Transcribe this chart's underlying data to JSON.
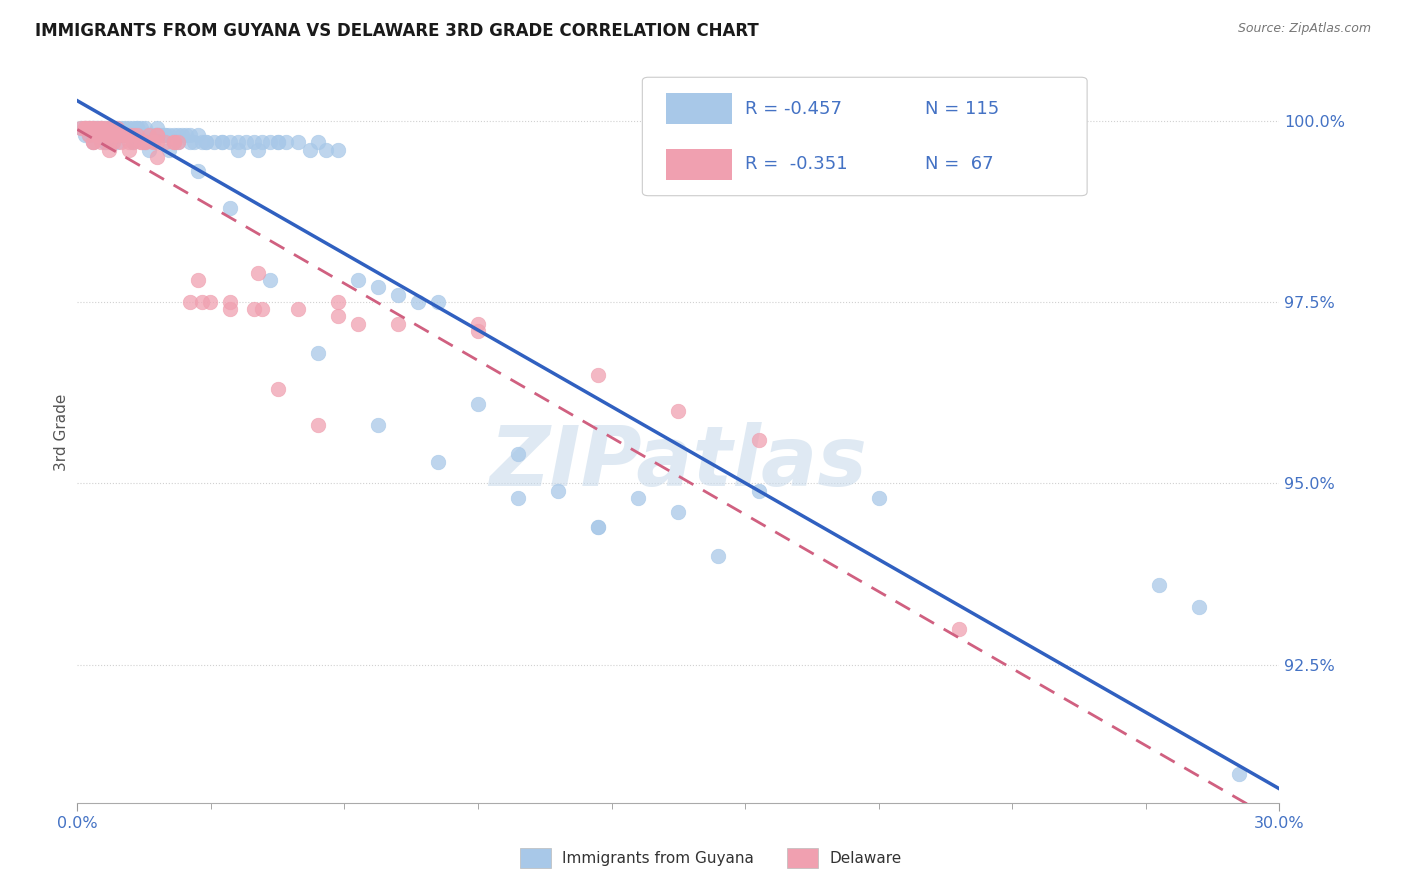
{
  "title": "IMMIGRANTS FROM GUYANA VS DELAWARE 3RD GRADE CORRELATION CHART",
  "source": "Source: ZipAtlas.com",
  "ylabel": "3rd Grade",
  "ytick_labels": [
    "100.0%",
    "97.5%",
    "95.0%",
    "92.5%"
  ],
  "ytick_values": [
    1.0,
    0.975,
    0.95,
    0.925
  ],
  "xmin": 0.0,
  "xmax": 0.3,
  "ymin": 0.906,
  "ymax": 1.008,
  "blue_color": "#a8c8e8",
  "pink_color": "#f0a0b0",
  "blue_line_color": "#3060c0",
  "pink_line_color": "#d06080",
  "axis_color": "#4472c4",
  "grid_color": "#cccccc",
  "watermark": "ZIPatlas",
  "blue_scatter_x": [
    0.001,
    0.002,
    0.002,
    0.003,
    0.003,
    0.003,
    0.004,
    0.004,
    0.004,
    0.005,
    0.005,
    0.006,
    0.006,
    0.006,
    0.007,
    0.007,
    0.008,
    0.008,
    0.009,
    0.009,
    0.01,
    0.01,
    0.011,
    0.012,
    0.012,
    0.013,
    0.013,
    0.014,
    0.014,
    0.015,
    0.015,
    0.016,
    0.016,
    0.017,
    0.017,
    0.018,
    0.019,
    0.02,
    0.02,
    0.021,
    0.022,
    0.023,
    0.024,
    0.025,
    0.026,
    0.027,
    0.028,
    0.029,
    0.03,
    0.031,
    0.032,
    0.034,
    0.036,
    0.038,
    0.04,
    0.042,
    0.044,
    0.046,
    0.048,
    0.05,
    0.052,
    0.055,
    0.058,
    0.062,
    0.065,
    0.07,
    0.075,
    0.08,
    0.085,
    0.09,
    0.1,
    0.11,
    0.12,
    0.13,
    0.14,
    0.15,
    0.17,
    0.2,
    0.003,
    0.005,
    0.007,
    0.009,
    0.011,
    0.013,
    0.015,
    0.018,
    0.02,
    0.022,
    0.025,
    0.028,
    0.032,
    0.036,
    0.04,
    0.045,
    0.05,
    0.06,
    0.004,
    0.007,
    0.01,
    0.014,
    0.018,
    0.023,
    0.03,
    0.038,
    0.048,
    0.06,
    0.075,
    0.09,
    0.11,
    0.13,
    0.16,
    0.27,
    0.28,
    0.29
  ],
  "blue_scatter_y": [
    0.999,
    0.999,
    0.998,
    0.999,
    0.999,
    0.998,
    0.999,
    0.999,
    0.998,
    0.999,
    0.998,
    0.999,
    0.999,
    0.998,
    0.999,
    0.998,
    0.999,
    0.998,
    0.999,
    0.998,
    0.999,
    0.998,
    0.999,
    0.999,
    0.998,
    0.999,
    0.998,
    0.999,
    0.998,
    0.999,
    0.998,
    0.999,
    0.998,
    0.999,
    0.998,
    0.998,
    0.998,
    0.999,
    0.998,
    0.998,
    0.998,
    0.998,
    0.998,
    0.998,
    0.998,
    0.998,
    0.998,
    0.997,
    0.998,
    0.997,
    0.997,
    0.997,
    0.997,
    0.997,
    0.997,
    0.997,
    0.997,
    0.997,
    0.997,
    0.997,
    0.997,
    0.997,
    0.996,
    0.996,
    0.996,
    0.978,
    0.977,
    0.976,
    0.975,
    0.975,
    0.961,
    0.954,
    0.949,
    0.944,
    0.948,
    0.946,
    0.949,
    0.948,
    0.998,
    0.999,
    0.997,
    0.997,
    0.998,
    0.998,
    0.999,
    0.998,
    0.998,
    0.998,
    0.997,
    0.997,
    0.997,
    0.997,
    0.996,
    0.996,
    0.997,
    0.997,
    0.997,
    0.997,
    0.997,
    0.997,
    0.996,
    0.996,
    0.993,
    0.988,
    0.978,
    0.968,
    0.958,
    0.953,
    0.948,
    0.944,
    0.94,
    0.936,
    0.933,
    0.91
  ],
  "pink_scatter_x": [
    0.001,
    0.002,
    0.002,
    0.003,
    0.003,
    0.004,
    0.004,
    0.005,
    0.005,
    0.006,
    0.006,
    0.007,
    0.007,
    0.008,
    0.008,
    0.009,
    0.009,
    0.01,
    0.011,
    0.012,
    0.013,
    0.014,
    0.015,
    0.016,
    0.017,
    0.018,
    0.019,
    0.02,
    0.022,
    0.024,
    0.003,
    0.005,
    0.007,
    0.009,
    0.011,
    0.014,
    0.017,
    0.02,
    0.024,
    0.028,
    0.033,
    0.038,
    0.044,
    0.05,
    0.06,
    0.07,
    0.002,
    0.004,
    0.006,
    0.008,
    0.01,
    0.013,
    0.016,
    0.02,
    0.025,
    0.031,
    0.038,
    0.046,
    0.055,
    0.065,
    0.08,
    0.1,
    0.13,
    0.17,
    0.22,
    0.004,
    0.008,
    0.013,
    0.02,
    0.03,
    0.045,
    0.065,
    0.1,
    0.15
  ],
  "pink_scatter_y": [
    0.999,
    0.999,
    0.999,
    0.999,
    0.999,
    0.999,
    0.999,
    0.999,
    0.998,
    0.999,
    0.999,
    0.999,
    0.998,
    0.999,
    0.998,
    0.999,
    0.998,
    0.999,
    0.998,
    0.998,
    0.998,
    0.998,
    0.998,
    0.997,
    0.997,
    0.998,
    0.997,
    0.998,
    0.997,
    0.997,
    0.998,
    0.998,
    0.998,
    0.997,
    0.997,
    0.997,
    0.997,
    0.998,
    0.997,
    0.975,
    0.975,
    0.974,
    0.974,
    0.963,
    0.958,
    0.972,
    0.999,
    0.997,
    0.997,
    0.997,
    0.998,
    0.997,
    0.997,
    0.997,
    0.997,
    0.975,
    0.975,
    0.974,
    0.974,
    0.973,
    0.972,
    0.971,
    0.965,
    0.956,
    0.93,
    0.997,
    0.996,
    0.996,
    0.995,
    0.978,
    0.979,
    0.975,
    0.972,
    0.96
  ]
}
